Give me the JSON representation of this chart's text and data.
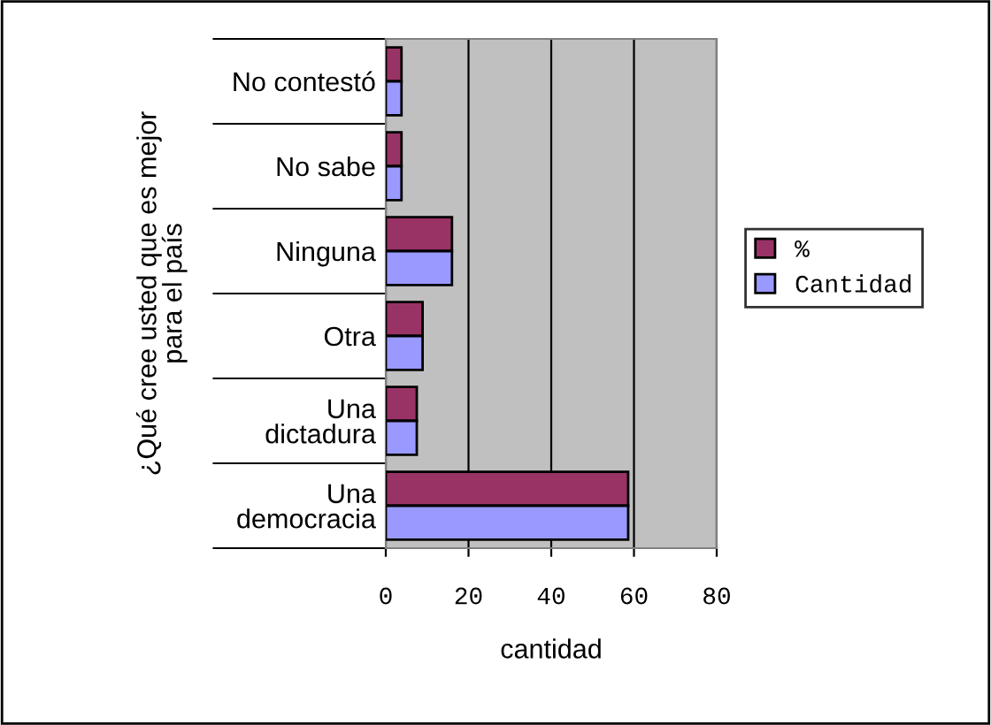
{
  "chart_data": {
    "type": "bar",
    "orientation": "horizontal",
    "ylabel": "¿Qué cree usted que es mejor\npara el país",
    "xlabel": "cantidad",
    "categories": [
      "No contestó",
      "No sabe",
      "Ninguna",
      "Otra",
      "Una\ndictadura",
      "Una\ndemocracia"
    ],
    "series": [
      {
        "name": "%",
        "color": "#993366",
        "values": [
          3.8,
          3.8,
          16.0,
          8.9,
          7.5,
          58.6
        ]
      },
      {
        "name": "Cantidad",
        "color": "#9999ff",
        "values": [
          3.8,
          3.8,
          16.0,
          8.9,
          7.5,
          58.6
        ]
      }
    ],
    "xlim": [
      0,
      80
    ],
    "xticks": [
      0,
      20,
      40,
      60,
      80
    ],
    "grid": "x",
    "legend": "right"
  }
}
